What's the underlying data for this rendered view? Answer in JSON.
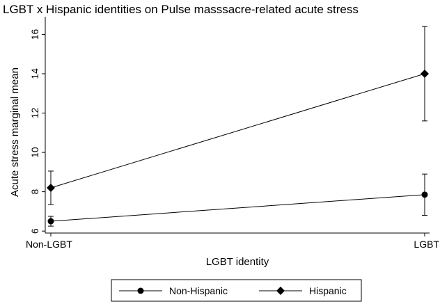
{
  "chart_data": {
    "type": "line",
    "title": "LGBT x Hispanic identities on Pulse masssacre-related acute stress",
    "xlabel": "LGBT identity",
    "ylabel": "Acute stress marginal mean",
    "categories": [
      "Non-LGBT",
      "LGBT"
    ],
    "y_ticks": [
      6,
      8,
      10,
      12,
      14,
      16
    ],
    "ylim": [
      5.9,
      16.9
    ],
    "grid": false,
    "legend_position": "bottom",
    "series": [
      {
        "name": "Non-Hispanic",
        "marker": "circle",
        "values": [
          6.5,
          7.85
        ],
        "ci_low": [
          6.25,
          6.8
        ],
        "ci_high": [
          6.75,
          8.9
        ]
      },
      {
        "name": "Hispanic",
        "marker": "diamond",
        "values": [
          8.2,
          14.0
        ],
        "ci_low": [
          7.35,
          11.6
        ],
        "ci_high": [
          9.05,
          16.4
        ]
      }
    ]
  }
}
